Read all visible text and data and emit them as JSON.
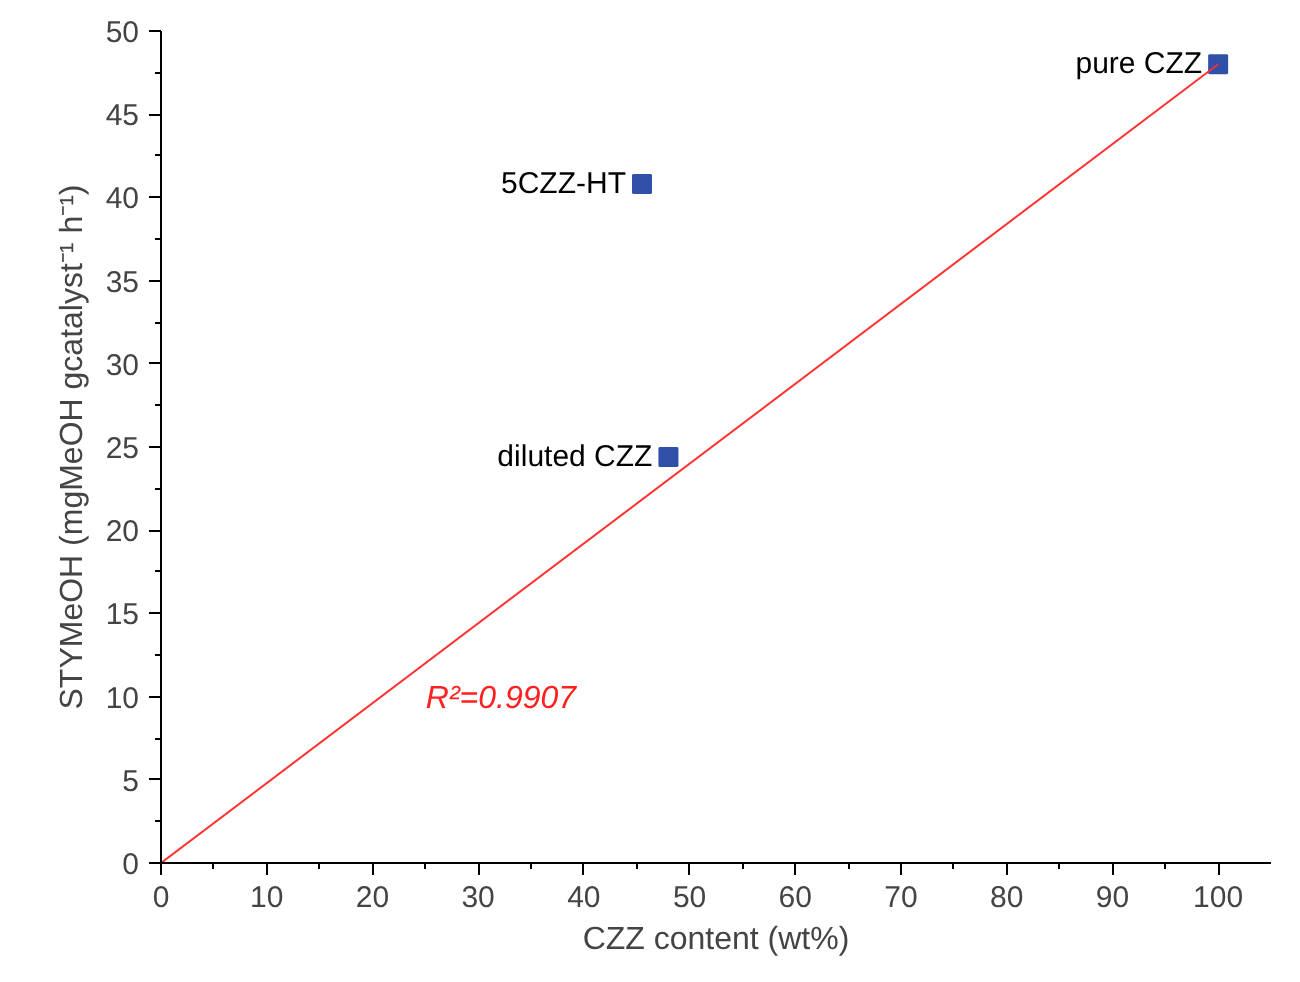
{
  "chart_data": {
    "type": "scatter",
    "xlabel": "CZZ content (wt%)",
    "ylabel": "STYMeOH (mgMeOH gcatalyst⁻¹ h⁻¹)",
    "xlim": [
      0,
      105
    ],
    "ylim": [
      0,
      50
    ],
    "xticks": [
      0,
      10,
      20,
      30,
      40,
      50,
      60,
      70,
      80,
      90,
      100
    ],
    "yticks": [
      0,
      5,
      10,
      15,
      20,
      25,
      30,
      35,
      40,
      45,
      50
    ],
    "marker": "square",
    "grid": false,
    "series": [
      {
        "name": "pure CZZ",
        "color": "#3050a8",
        "x": [
          100
        ],
        "values": [
          48
        ]
      },
      {
        "name": "5CZZ-HT",
        "color": "#3050a8",
        "x": [
          45.5
        ],
        "values": [
          40.8
        ]
      },
      {
        "name": "diluted CZZ",
        "color": "#3050a8",
        "x": [
          48
        ],
        "values": [
          24.4
        ]
      },
      {
        "type": "line",
        "marker": "none",
        "color": "#ff3030",
        "x": [
          0,
          100
        ],
        "values": [
          0,
          48
        ]
      }
    ],
    "annotations": [
      "R²=0.9907"
    ]
  }
}
